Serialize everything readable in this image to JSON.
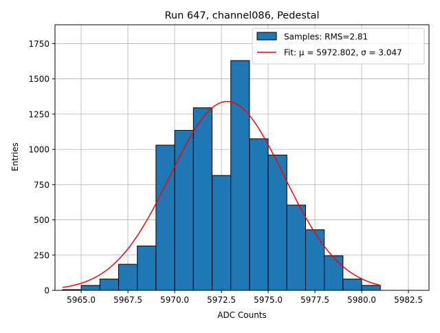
{
  "chart_data": {
    "type": "bar",
    "title": "Run 647, channel086, Pedestal",
    "xlabel": "ADC Counts",
    "ylabel": "Entries",
    "xlim": [
      5963.6,
      5983.6
    ],
    "ylim": [
      0,
      1884
    ],
    "xticks": [
      5965.0,
      5967.5,
      5970.0,
      5972.5,
      5975.0,
      5977.5,
      5980.0,
      5982.5
    ],
    "xtick_labels": [
      "5965.0",
      "5967.5",
      "5970.0",
      "5972.5",
      "5975.0",
      "5977.5",
      "5980.0",
      "5982.5"
    ],
    "yticks": [
      0,
      250,
      500,
      750,
      1000,
      1250,
      1500,
      1750
    ],
    "ytick_labels": [
      "0",
      "250",
      "500",
      "750",
      "1000",
      "1250",
      "1500",
      "1750"
    ],
    "grid": true,
    "legend_position": "top-right",
    "histogram": {
      "bin_edges": [
        5964.5,
        5965.5,
        5966.5,
        5967.5,
        5968.5,
        5969.5,
        5970.5,
        5971.5,
        5972.5,
        5973.5,
        5974.5,
        5975.5,
        5976.5,
        5977.5,
        5978.5,
        5979.5,
        5980.5,
        5981.5
      ],
      "bin_starts": [
        5964.0,
        5965.0,
        5966.0,
        5967.0,
        5968.0,
        5969.0,
        5970.0,
        5971.0,
        5972.0,
        5973.0,
        5974.0,
        5975.0,
        5976.0,
        5977.0,
        5978.0,
        5979.0,
        5980.0
      ],
      "bin_ends": [
        5965.0,
        5966.0,
        5967.0,
        5968.0,
        5969.0,
        5970.0,
        5971.0,
        5972.0,
        5973.0,
        5974.0,
        5975.0,
        5976.0,
        5977.0,
        5978.0,
        5979.0,
        5980.0,
        5981.0
      ],
      "counts": [
        5,
        35,
        80,
        185,
        315,
        1030,
        1135,
        1295,
        815,
        1630,
        1075,
        960,
        605,
        430,
        245,
        80,
        35
      ],
      "color": "#1f77b4",
      "edge_color": "#000000"
    },
    "fit": {
      "mu": 5972.802,
      "sigma": 3.047,
      "amplitude": 1340,
      "x_range": [
        5964.0,
        5981.0
      ],
      "color": "#ff0000"
    },
    "legend": {
      "hist_label": "Samples: RMS=2.81",
      "fit_label": "Fit: μ = 5972.802, σ = 3.047"
    }
  }
}
